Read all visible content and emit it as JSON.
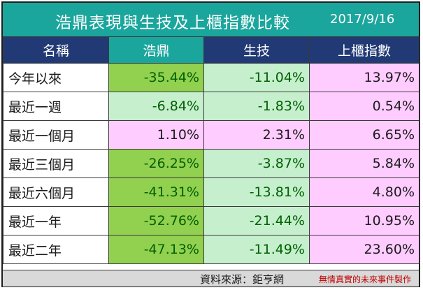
{
  "header": {
    "title": "浩鼎表現與生技及上櫃指數比較",
    "date": "2017/9/16"
  },
  "columns": [
    "名稱",
    "浩鼎",
    "生技",
    "上櫃指數"
  ],
  "rows": [
    {
      "period": "今年以來",
      "haoding": "-35.44%",
      "biotech": "-11.04%",
      "otc": "13.97%"
    },
    {
      "period": "最近一週",
      "haoding": "-6.84%",
      "biotech": "-1.83%",
      "otc": "0.54%"
    },
    {
      "period": "最近一個月",
      "haoding": "1.10%",
      "biotech": "2.31%",
      "otc": "6.65%"
    },
    {
      "period": "最近三個月",
      "haoding": "-26.25%",
      "biotech": "-3.87%",
      "otc": "5.84%"
    },
    {
      "period": "最近六個月",
      "haoding": "-41.31%",
      "biotech": "-13.81%",
      "otc": "4.80%"
    },
    {
      "period": "最近一年",
      "haoding": "-52.76%",
      "biotech": "-21.44%",
      "otc": "10.95%"
    },
    {
      "period": "最近二年",
      "haoding": "-47.13%",
      "biotech": "-11.49%",
      "otc": "23.60%"
    }
  ],
  "footer": {
    "source": "資料來源：鉅亨網",
    "credit": "無情真實的未來事件製作"
  },
  "colors": {
    "header_teal": "#1aa69c",
    "header_navy": "#213a75",
    "best_green": "#92d050",
    "light_green": "#c6efce",
    "pink": "#ffccff",
    "negative_text": "#006100"
  }
}
